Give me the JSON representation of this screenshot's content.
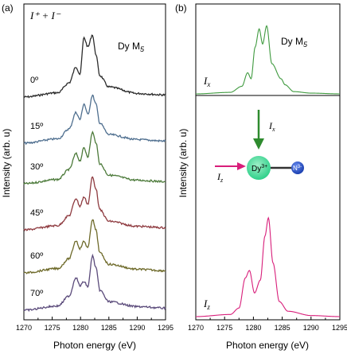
{
  "chart_data": [
    {
      "panel": "(a)",
      "type": "line",
      "title": "",
      "xlabel": "Photon energy (eV)",
      "ylabel": "Intensity (arb. u)",
      "xlim": [
        1270,
        1295
      ],
      "xticks": [
        1270,
        1275,
        1280,
        1285,
        1290,
        1295
      ],
      "yticks": [],
      "grid": false,
      "annotations": {
        "measurement": "I⁺ + I⁻",
        "edge_main": "Dy M",
        "edge_sub": "5"
      },
      "x": [
        1270,
        1276,
        1278,
        1279.2,
        1279.9,
        1280.6,
        1281.3,
        1282.1,
        1282.7,
        1283.4,
        1285,
        1290,
        1295
      ],
      "series": [
        {
          "name": "0º",
          "color": "#2d2d2d",
          "values": [
            0.0,
            0.06,
            0.2,
            0.42,
            0.32,
            0.83,
            0.7,
            0.87,
            0.6,
            0.3,
            0.14,
            0.05,
            0.03
          ]
        },
        {
          "name": "15º",
          "color": "#4f6f8f",
          "values": [
            0.0,
            0.06,
            0.2,
            0.43,
            0.33,
            0.55,
            0.4,
            0.67,
            0.55,
            0.28,
            0.12,
            0.05,
            0.03
          ]
        },
        {
          "name": "30º",
          "color": "#4c7a3a",
          "values": [
            0.0,
            0.06,
            0.2,
            0.42,
            0.32,
            0.5,
            0.38,
            0.72,
            0.58,
            0.28,
            0.12,
            0.05,
            0.03
          ]
        },
        {
          "name": "45º",
          "color": "#8e3a3f",
          "values": [
            0.0,
            0.06,
            0.2,
            0.44,
            0.33,
            0.46,
            0.36,
            0.74,
            0.58,
            0.28,
            0.12,
            0.05,
            0.03
          ]
        },
        {
          "name": "60º",
          "color": "#6e6a2a",
          "values": [
            0.0,
            0.06,
            0.2,
            0.45,
            0.34,
            0.44,
            0.35,
            0.75,
            0.6,
            0.28,
            0.12,
            0.05,
            0.03
          ]
        },
        {
          "name": "70º",
          "color": "#5a4a7a",
          "values": [
            0.0,
            0.06,
            0.2,
            0.46,
            0.34,
            0.4,
            0.33,
            0.76,
            0.6,
            0.28,
            0.12,
            0.05,
            0.03
          ]
        }
      ]
    },
    {
      "panel": "(b)",
      "type": "line",
      "title": "",
      "xlabel": "Photon energy (eV)",
      "ylabel": "Intensity (arb. u)",
      "xlim": [
        1270,
        1295
      ],
      "xticks": [
        1270,
        1275,
        1280,
        1285,
        1290,
        1295
      ],
      "yticks": [],
      "grid": false,
      "annotations": {
        "edge_main": "Dy M",
        "edge_sub": "5",
        "ion_label": "Dy",
        "ion_charge": "3+",
        "ligand_label": "N",
        "ligand_charge": "3-",
        "beam_x_top": "I",
        "beam_x_top_sub": "x",
        "beam_z_left": "I",
        "beam_z_left_sub": "z"
      },
      "series": [
        {
          "name": "I_x",
          "label_main": "I",
          "label_sub": "x",
          "color": "#3f9a3f",
          "x": [
            1270,
            1276,
            1278,
            1279.0,
            1279.6,
            1280.3,
            1281.0,
            1281.6,
            1282.3,
            1283.2,
            1284.8,
            1285.5,
            1287,
            1290,
            1295
          ],
          "values": [
            0.0,
            0.02,
            0.1,
            0.28,
            0.2,
            0.62,
            0.86,
            0.66,
            0.9,
            0.4,
            0.2,
            0.12,
            0.03,
            0.01,
            0.0
          ]
        },
        {
          "name": "I_z",
          "label_main": "I",
          "label_sub": "z",
          "color": "#d81e7a",
          "x": [
            1270,
            1276,
            1277.5,
            1278.6,
            1279.3,
            1280.2,
            1281.2,
            1282.0,
            1282.6,
            1283.4,
            1284.5,
            1286,
            1290,
            1295
          ],
          "values": [
            0.0,
            0.02,
            0.08,
            0.36,
            0.43,
            0.22,
            0.34,
            0.75,
            0.92,
            0.5,
            0.14,
            0.05,
            0.01,
            0.0
          ]
        }
      ]
    }
  ]
}
